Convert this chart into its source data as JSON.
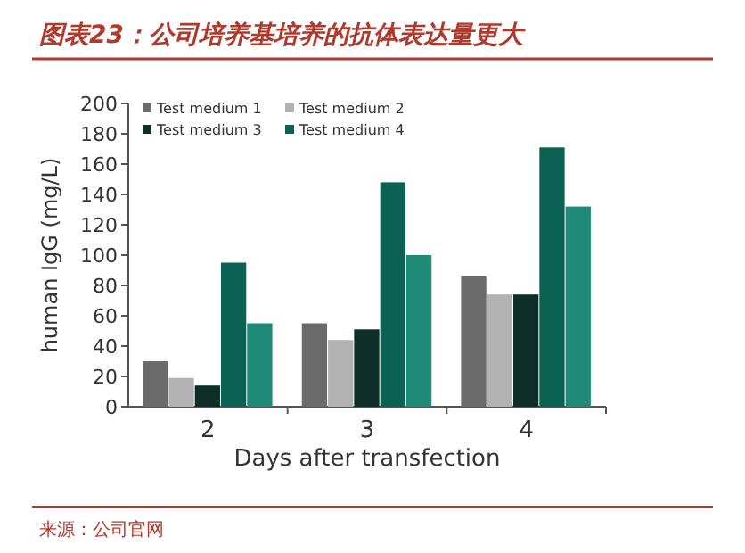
{
  "chart_data": {
    "type": "bar",
    "title": "图表23：公司培养基培养的抗体表达量更大",
    "xlabel": "Days after transfection",
    "ylabel": "human IgG (mg/L)",
    "categories": [
      "2",
      "3",
      "4"
    ],
    "series": [
      {
        "name": "Test medium 1",
        "color": "#6b6b6b",
        "values": [
          30,
          55,
          86
        ]
      },
      {
        "name": "Test medium 2",
        "color": "#b2b2b2",
        "values": [
          19,
          44,
          74
        ]
      },
      {
        "name": "Test medium 3",
        "color": "#0e2e29",
        "values": [
          14,
          51,
          74
        ]
      },
      {
        "name": "Test medium 4",
        "color": "#0b6152",
        "values": [
          95,
          148,
          171
        ]
      },
      {
        "color": "#1f8a78",
        "values": [
          55,
          100,
          132
        ]
      }
    ],
    "ylim": [
      0,
      200
    ],
    "yticks": [
      0,
      20,
      40,
      60,
      80,
      100,
      120,
      140,
      160,
      180,
      200
    ],
    "legend": "top left",
    "grid": false,
    "annotations": [
      "来源：公司官网"
    ]
  }
}
